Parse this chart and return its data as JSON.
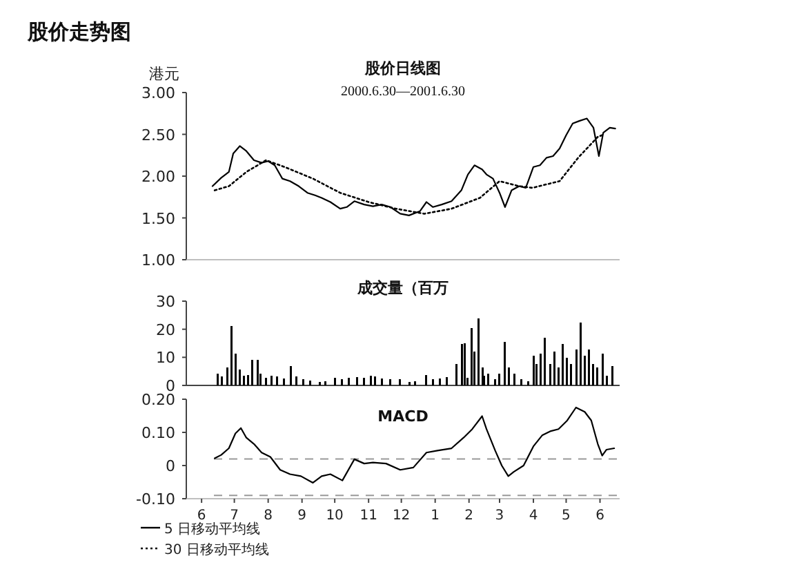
{
  "chart_data": [
    {
      "type": "line",
      "title": "股价日线图",
      "subtitle": "2000.6.30—2001.6.30",
      "ylabel": "港元",
      "annotations": [
        "股价走势图"
      ],
      "legend": "bottom left",
      "tick_labels": "y",
      "xlim": [
        "2000-06-01",
        "2001-07-03"
      ],
      "ylim": [
        1,
        3
      ],
      "yticks": [
        {
          "value": 1,
          "label": "1.00"
        },
        {
          "value": 1.5,
          "label": "1.50"
        },
        {
          "value": 2,
          "label": "2.00"
        },
        {
          "value": 2.5,
          "label": "2.50"
        },
        {
          "value": 3,
          "label": "3.00"
        }
      ],
      "series": [
        {
          "name": "5 日移动平均线",
          "color": "#000000",
          "line_style": "solid",
          "x": [
            "2000-06-25",
            "2000-07-03",
            "2000-07-10",
            "2000-07-14",
            "2000-07-20",
            "2000-07-26",
            "2000-08-02",
            "2000-08-09",
            "2000-08-15",
            "2000-08-21",
            "2000-08-28",
            "2000-09-04",
            "2000-09-12",
            "2000-09-20",
            "2000-09-27",
            "2000-10-03",
            "2000-10-11",
            "2000-10-20",
            "2000-10-26",
            "2000-11-02",
            "2000-11-11",
            "2000-11-19",
            "2000-11-27",
            "2000-12-05",
            "2000-12-14",
            "2000-12-22",
            "2001-01-01",
            "2001-01-07",
            "2001-01-13",
            "2001-01-21",
            "2001-01-30",
            "2001-02-08",
            "2001-02-14",
            "2001-02-20",
            "2001-02-27",
            "2001-03-03",
            "2001-03-09",
            "2001-03-15",
            "2001-03-20",
            "2001-03-26",
            "2001-04-02",
            "2001-04-08",
            "2001-04-15",
            "2001-04-21",
            "2001-04-27",
            "2001-05-03",
            "2001-05-09",
            "2001-05-15",
            "2001-05-21",
            "2001-05-27",
            "2001-06-03",
            "2001-06-09",
            "2001-06-14",
            "2001-06-18",
            "2001-06-24",
            "2001-06-29"
          ],
          "values": [
            1.88,
            1.98,
            2.05,
            2.27,
            2.36,
            2.3,
            2.19,
            2.16,
            2.18,
            2.13,
            1.97,
            1.94,
            1.88,
            1.8,
            1.77,
            1.74,
            1.69,
            1.61,
            1.63,
            1.7,
            1.66,
            1.64,
            1.66,
            1.63,
            1.55,
            1.53,
            1.58,
            1.69,
            1.63,
            1.66,
            1.7,
            1.83,
            2.02,
            2.13,
            2.08,
            2.02,
            1.97,
            1.8,
            1.63,
            1.83,
            1.88,
            1.86,
            2.11,
            2.13,
            2.22,
            2.24,
            2.33,
            2.49,
            2.63,
            2.66,
            2.69,
            2.58,
            2.24,
            2.52,
            2.58,
            2.57
          ]
        },
        {
          "name": "30 日移动平均线",
          "color": "#000000",
          "line_style": "dotted",
          "x": [
            "2000-06-27",
            "2000-07-10",
            "2000-07-26",
            "2000-08-13",
            "2000-08-30",
            "2000-09-25",
            "2000-10-20",
            "2000-11-15",
            "2000-12-10",
            "2001-01-05",
            "2001-01-30",
            "2001-02-25",
            "2001-03-15",
            "2001-04-02",
            "2001-04-14",
            "2001-05-09",
            "2001-05-26",
            "2001-06-13",
            "2001-06-17"
          ],
          "values": [
            1.83,
            1.88,
            2.05,
            2.19,
            2.11,
            1.97,
            1.8,
            1.69,
            1.61,
            1.55,
            1.61,
            1.74,
            1.94,
            1.88,
            1.86,
            1.94,
            2.22,
            2.47,
            2.49
          ]
        }
      ]
    },
    {
      "type": "bar",
      "title": "成交量（百万",
      "tick_labels": "y",
      "color": "#000000",
      "xlim": [
        "2000-06-01",
        "2001-07-03"
      ],
      "ylim": [
        0,
        30
      ],
      "yticks": [
        0,
        10,
        20,
        30
      ],
      "x": [
        "2000-06-30",
        "2000-07-04",
        "2000-07-08",
        "2000-07-12",
        "2000-07-16",
        "2000-07-20",
        "2000-07-24",
        "2000-07-28",
        "2000-08-01",
        "2000-08-05",
        "2000-08-08",
        "2000-08-13",
        "2000-08-18",
        "2000-08-23",
        "2000-08-29",
        "2000-09-05",
        "2000-09-10",
        "2000-09-16",
        "2000-09-22",
        "2000-10-01",
        "2000-10-07",
        "2000-10-15",
        "2000-10-22",
        "2000-10-28",
        "2000-11-04",
        "2000-11-11",
        "2000-11-17",
        "2000-11-21",
        "2000-11-27",
        "2000-12-05",
        "2000-12-14",
        "2000-12-22",
        "2000-12-28",
        "2001-01-07",
        "2001-01-13",
        "2001-01-19",
        "2001-01-26",
        "2001-02-03",
        "2001-02-08",
        "2001-02-11",
        "2001-02-14",
        "2001-02-17",
        "2001-02-20",
        "2001-02-24",
        "2001-02-27",
        "2001-03-01",
        "2001-03-05",
        "2001-03-11",
        "2001-03-15",
        "2001-03-20",
        "2001-03-24",
        "2001-03-29",
        "2001-04-04",
        "2001-04-10",
        "2001-04-15",
        "2001-04-18",
        "2001-04-22",
        "2001-04-26",
        "2001-04-30",
        "2001-05-04",
        "2001-05-08",
        "2001-05-12",
        "2001-05-16",
        "2001-05-20",
        "2001-05-24",
        "2001-05-28",
        "2001-06-01",
        "2001-06-05",
        "2001-06-09",
        "2001-06-13",
        "2001-06-17",
        "2001-06-21",
        "2001-06-26"
      ],
      "values": [
        4.2,
        3.2,
        6.3,
        21.1,
        11.3,
        5.6,
        3.5,
        3.8,
        9.2,
        9.2,
        4.2,
        2.8,
        3.5,
        3.2,
        2.4,
        7.0,
        3.2,
        2.1,
        1.8,
        1.3,
        1.5,
        2.8,
        2.1,
        2.7,
        3.0,
        2.7,
        3.5,
        3.2,
        2.4,
        2.1,
        2.1,
        1.3,
        1.5,
        3.8,
        2.1,
        2.4,
        3.0,
        7.7,
        14.8,
        15.1,
        2.8,
        20.4,
        12.0,
        23.9,
        6.3,
        3.5,
        4.2,
        2.1,
        4.2,
        15.5,
        6.3,
        4.2,
        2.1,
        1.4,
        10.6,
        7.7,
        11.3,
        16.9,
        7.7,
        12.0,
        6.3,
        14.8,
        9.9,
        7.7,
        12.7,
        22.5,
        10.6,
        12.7,
        7.7,
        6.3,
        11.3,
        3.5,
        7.0
      ]
    },
    {
      "type": "line",
      "title": "MACD",
      "color": "#000000",
      "line_style": "solid",
      "xlim": [
        "2000-06-01",
        "2001-07-03"
      ],
      "ylim": [
        -0.1,
        0.2
      ],
      "yticks": [
        {
          "value": -0.1,
          "label": "-0.10"
        },
        0,
        {
          "value": 0.1,
          "label": "0.10"
        },
        {
          "value": 0.2,
          "label": "0.20"
        }
      ],
      "xticks": [
        {
          "value": "2000-06-15",
          "label": "6"
        },
        {
          "value": "2000-07-15",
          "label": "7"
        },
        {
          "value": "2000-08-15",
          "label": "8"
        },
        {
          "value": "2000-09-15",
          "label": "9"
        },
        {
          "value": "2000-10-15",
          "label": "10"
        },
        {
          "value": "2000-11-15",
          "label": "11"
        },
        {
          "value": "2000-12-15",
          "label": "12"
        },
        {
          "value": "2001-01-15",
          "label": "1"
        },
        {
          "value": "2001-02-15",
          "label": "2"
        },
        {
          "value": "2001-03-15",
          "label": "3"
        },
        {
          "value": "2001-04-15",
          "label": "4"
        },
        {
          "value": "2001-05-15",
          "label": "5"
        },
        {
          "value": "2001-06-15",
          "label": "6"
        }
      ],
      "x": [
        "2000-06-27",
        "2000-07-03",
        "2000-07-10",
        "2000-07-16",
        "2000-07-21",
        "2000-07-26",
        "2000-08-02",
        "2000-08-09",
        "2000-08-17",
        "2000-08-26",
        "2000-09-04",
        "2000-09-14",
        "2000-09-25",
        "2000-10-03",
        "2000-10-11",
        "2000-10-22",
        "2000-11-02",
        "2000-11-11",
        "2000-11-19",
        "2000-12-01",
        "2000-12-14",
        "2000-12-26",
        "2001-01-07",
        "2001-01-17",
        "2001-01-30",
        "2001-02-10",
        "2001-02-18",
        "2001-02-27",
        "2001-03-03",
        "2001-03-11",
        "2001-03-17",
        "2001-03-23",
        "2001-03-28",
        "2001-04-06",
        "2001-04-15",
        "2001-04-23",
        "2001-05-01",
        "2001-05-08",
        "2001-05-16",
        "2001-05-24",
        "2001-06-01",
        "2001-06-07",
        "2001-06-13",
        "2001-06-17",
        "2001-06-21",
        "2001-06-28"
      ],
      "values": [
        0.022,
        0.032,
        0.052,
        0.097,
        0.113,
        0.084,
        0.065,
        0.039,
        0.026,
        -0.013,
        -0.026,
        -0.032,
        -0.052,
        -0.032,
        -0.026,
        -0.045,
        0.019,
        0.006,
        0.009,
        0.006,
        -0.013,
        -0.006,
        0.039,
        0.045,
        0.052,
        0.084,
        0.11,
        0.149,
        0.11,
        0.045,
        0,
        -0.032,
        -0.019,
        0,
        0.058,
        0.091,
        0.104,
        0.11,
        0.136,
        0.175,
        0.162,
        0.136,
        0.065,
        0.03,
        0.048,
        0.052
      ],
      "ref_lines": [
        {
          "axis": "y",
          "value": 0.02,
          "color": "#999999",
          "line_style": "dashed"
        },
        {
          "axis": "y",
          "value": -0.09,
          "color": "#999999",
          "line_style": "dashed"
        }
      ]
    }
  ]
}
